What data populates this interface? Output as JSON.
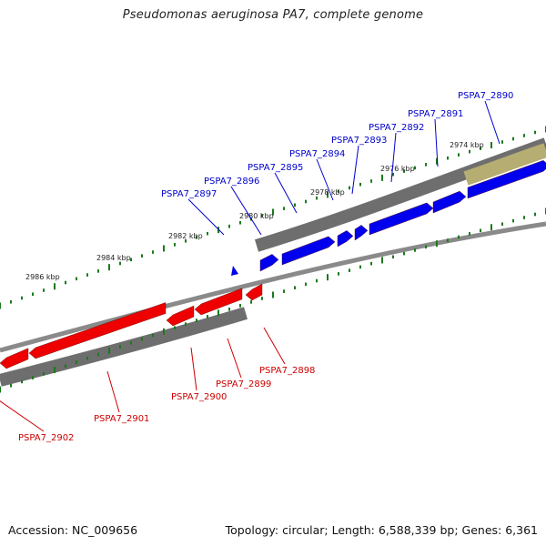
{
  "header": {
    "title": "Pseudomonas aeruginosa PA7, complete genome"
  },
  "footer": {
    "accession": "Accession: NC_009656",
    "summary": "Topology: circular; Length: 6,588,339 bp; Genes: 6,361"
  },
  "colors": {
    "forward_gene": "#0000ee",
    "reverse_gene": "#ee0000",
    "cds_track": "#6e6e6e",
    "highlight_track": "#b5ad72",
    "backbone": "#8a8a8a",
    "tick": "#1a7a1a",
    "forward_label": "#0000cc",
    "reverse_label": "#cc0000"
  },
  "map": {
    "tick_labels": [
      "2974 kbp",
      "2976 kbp",
      "2978 kbp",
      "2980 kbp",
      "2982 kbp",
      "2984 kbp",
      "2986 kbp"
    ],
    "forward_genes": [
      "PSPA7_2890",
      "PSPA7_2891",
      "PSPA7_2892",
      "PSPA7_2893",
      "PSPA7_2894",
      "PSPA7_2895",
      "PSPA7_2896",
      "PSPA7_2897"
    ],
    "reverse_genes": [
      "PSPA7_2898",
      "PSPA7_2899",
      "PSPA7_2900",
      "PSPA7_2901",
      "PSPA7_2902"
    ]
  }
}
